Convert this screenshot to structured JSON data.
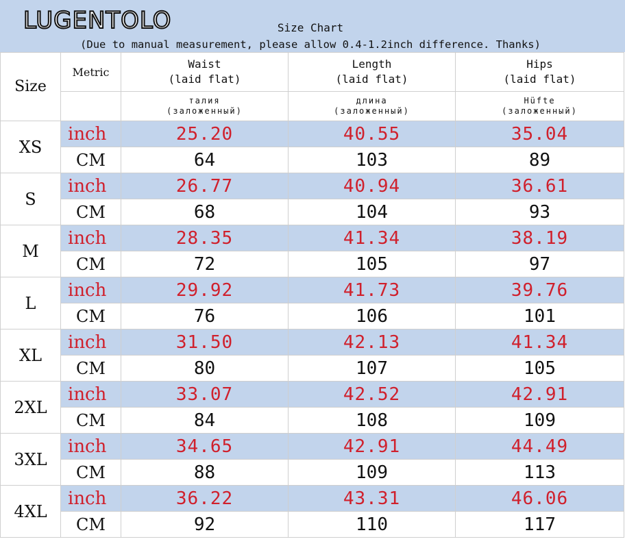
{
  "brand": "LUGENTOLO",
  "title": "Size Chart",
  "subtitle": "(Due to manual measurement, please allow 0.4-1.2inch difference. Thanks)",
  "headers": {
    "size": "Size",
    "metric": "Metric",
    "columns": [
      {
        "name": "Waist",
        "note": "(laid flat)",
        "ru_name": "талия",
        "ru_note": "(заложенный)"
      },
      {
        "name": "Length",
        "note": "(laid flat)",
        "ru_name": "длина",
        "ru_note": "(заложенный)"
      },
      {
        "name": "Hips",
        "note": "(laid flat)",
        "ru_name": "Hüfte",
        "ru_note": "(заложенный)"
      }
    ]
  },
  "units": {
    "inch": "inch",
    "cm": "CM"
  },
  "rows": [
    {
      "size": "XS",
      "inch": [
        "25.20",
        "40.55",
        "35.04"
      ],
      "cm": [
        "64",
        "103",
        "89"
      ]
    },
    {
      "size": "S",
      "inch": [
        "26.77",
        "40.94",
        "36.61"
      ],
      "cm": [
        "68",
        "104",
        "93"
      ]
    },
    {
      "size": "M",
      "inch": [
        "28.35",
        "41.34",
        "38.19"
      ],
      "cm": [
        "72",
        "105",
        "97"
      ]
    },
    {
      "size": "L",
      "inch": [
        "29.92",
        "41.73",
        "39.76"
      ],
      "cm": [
        "76",
        "106",
        "101"
      ]
    },
    {
      "size": "XL",
      "inch": [
        "31.50",
        "42.13",
        "41.34"
      ],
      "cm": [
        "80",
        "107",
        "105"
      ]
    },
    {
      "size": "2XL",
      "inch": [
        "33.07",
        "42.52",
        "42.91"
      ],
      "cm": [
        "84",
        "108",
        "109"
      ]
    },
    {
      "size": "3XL",
      "inch": [
        "34.65",
        "42.91",
        "44.49"
      ],
      "cm": [
        "88",
        "109",
        "113"
      ]
    },
    {
      "size": "4XL",
      "inch": [
        "36.22",
        "43.31",
        "46.06"
      ],
      "cm": [
        "92",
        "110",
        "117"
      ]
    }
  ],
  "colors": {
    "header_bg": "#c2d4ec",
    "inch_text": "#d0202c",
    "cm_text": "#111111"
  }
}
